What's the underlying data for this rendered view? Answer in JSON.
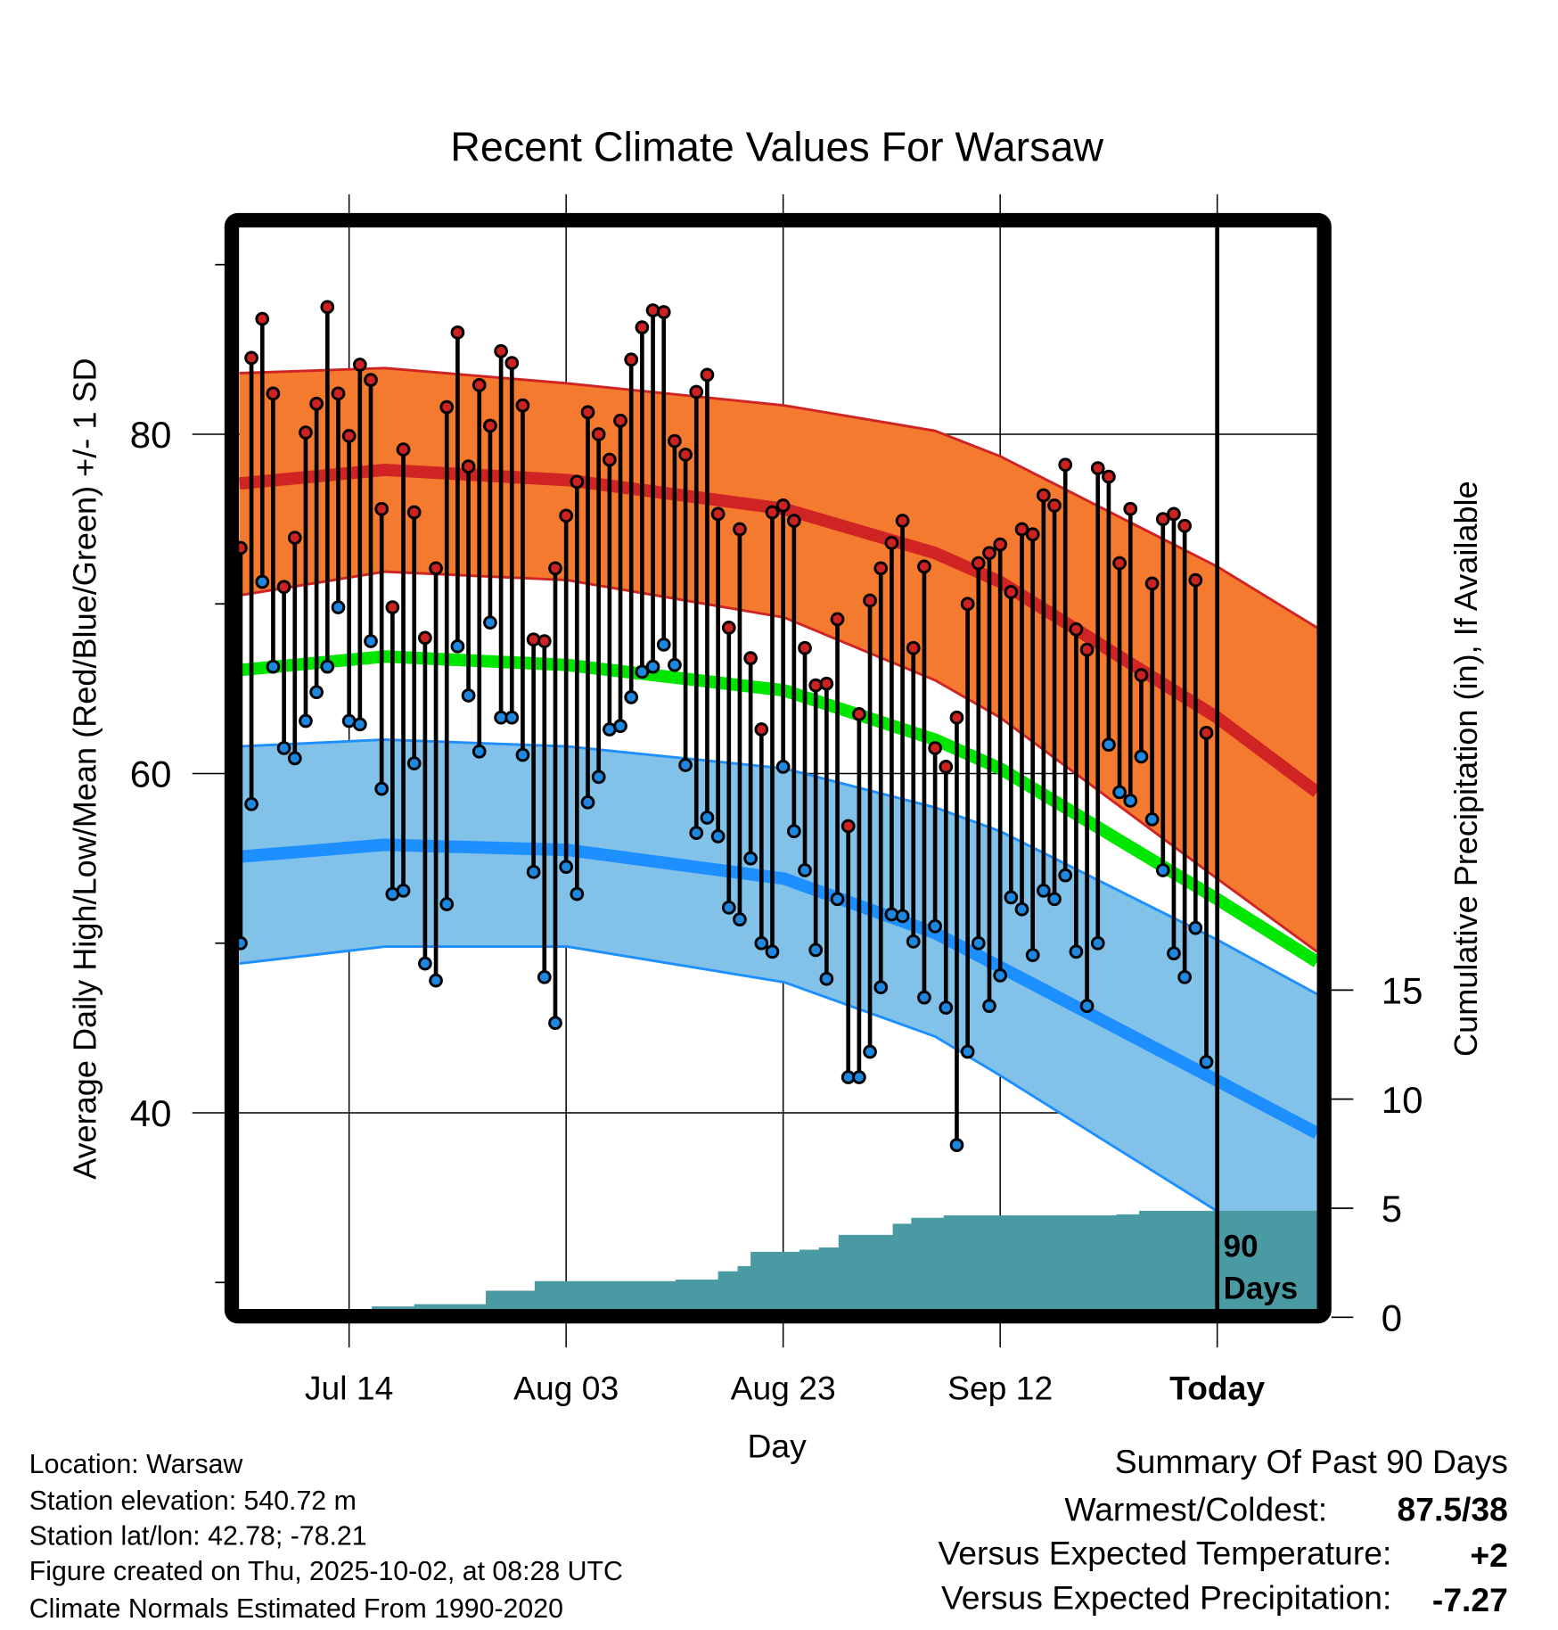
{
  "chart_data": {
    "type": "line",
    "title": "Recent Climate Values For Warsaw",
    "xlabel": "Day",
    "ylabel": "Average Daily High/Low/Mean (Red/Blue/Green) +/- 1 SD",
    "y2label": "Cumulative Precipitation (in), If Available",
    "ylim": [
      28.4,
      92.2
    ],
    "y2lim": [
      0,
      15
    ],
    "xlim_days_from_today": [
      -90.1,
      9.2
    ],
    "x_ticks": [
      {
        "day": -80,
        "label": "Jul 14"
      },
      {
        "day": -60,
        "label": "Aug 03"
      },
      {
        "day": -40,
        "label": "Aug 23"
      },
      {
        "day": -20,
        "label": "Sep 12"
      },
      {
        "day": 0,
        "label": "Today"
      }
    ],
    "y_ticks": [
      {
        "value": 80,
        "label": "80"
      },
      {
        "value": 60,
        "label": "60"
      },
      {
        "value": 40,
        "label": "40"
      }
    ],
    "y_minor_ticks": [
      90,
      70,
      50,
      30
    ],
    "y2_ticks": [
      {
        "value": 0,
        "label": "0"
      },
      {
        "value": 5,
        "label": "5"
      },
      {
        "value": 10,
        "label": "10"
      },
      {
        "value": 15,
        "label": "15"
      }
    ],
    "grid": true,
    "window_label_line1": "90",
    "window_label_line2": "Days",
    "daily": {
      "first_day_from_today": -90,
      "high": [
        73.3,
        84.5,
        86.8,
        82.4,
        71,
        73.9,
        80.1,
        81.8,
        87.5,
        82.4,
        79.9,
        84.1,
        83.2,
        75.6,
        69.8,
        79.1,
        75.4,
        68,
        72.1,
        81.6,
        86,
        78.1,
        82.9,
        80.5,
        84.9,
        84.2,
        81.7,
        67.9,
        67.8,
        72.1,
        75.2,
        77.2,
        81.3,
        80,
        78.5,
        80.8,
        84.4,
        86.3,
        87.3,
        87.2,
        79.6,
        78.8,
        82.5,
        83.5,
        75.3,
        68.6,
        74.4,
        66.8,
        62.6,
        75.4,
        75.8,
        74.9,
        67.4,
        65.2,
        65.3,
        69.1,
        56.9,
        63.5,
        70.2,
        72.1,
        73.6,
        74.9,
        67.4,
        72.2,
        61.5,
        60.4,
        63.3,
        70,
        72.4,
        73,
        73.5,
        70.7,
        74.4,
        74.1,
        76.4,
        75.8,
        78.2,
        68.5,
        67.3,
        78,
        77.5,
        72.4,
        75.6,
        65.8,
        71.2,
        75,
        75.3,
        74.6,
        71.4,
        62.4
      ],
      "low": [
        50,
        58.2,
        71.3,
        66.3,
        61.5,
        60.9,
        63.1,
        64.8,
        66.3,
        69.8,
        63.1,
        62.9,
        67.8,
        59.1,
        52.9,
        53.1,
        60.6,
        48.8,
        47.8,
        52.3,
        67.5,
        64.6,
        61.3,
        68.9,
        63.3,
        63.3,
        61.1,
        54.2,
        48,
        45.3,
        54.5,
        52.9,
        58.3,
        59.8,
        62.6,
        62.8,
        64.5,
        66,
        66.3,
        67.6,
        66.4,
        60.5,
        56.5,
        57.4,
        56.3,
        52.1,
        51.4,
        55,
        50,
        49.5,
        60.4,
        56.6,
        54.3,
        49.6,
        47.9,
        52.6,
        42.1,
        42.1,
        43.6,
        47.4,
        51.7,
        51.6,
        50.1,
        46.8,
        51,
        46.2,
        38.1,
        43.6,
        50,
        46.3,
        48.1,
        52.7,
        52,
        49.3,
        53.1,
        52.6,
        54,
        49.5,
        46.3,
        50,
        61.7,
        58.9,
        58.4,
        61,
        57.3,
        54.3,
        49.4,
        48,
        50.9,
        43
      ]
    },
    "normals": {
      "days": [
        -90.1,
        -76.7,
        -59.9,
        -39.9,
        -26,
        -20,
        0,
        9.2
      ],
      "high_plus_sd": [
        83.6,
        83.9,
        83,
        81.7,
        80.2,
        78.7,
        72.2,
        68.6
      ],
      "high_mean": [
        77.1,
        77.9,
        77.3,
        75.6,
        73,
        71.3,
        63.3,
        58.9
      ],
      "high_minus_sd": [
        70.5,
        71.9,
        71.4,
        69.2,
        65.5,
        63.3,
        53.8,
        49.5
      ],
      "mean": [
        66.1,
        66.9,
        66.4,
        64.9,
        62,
        60.3,
        52.6,
        48.9
      ],
      "low_plus_sd": [
        61.6,
        62,
        61.6,
        60.3,
        58,
        56.6,
        50.2,
        47
      ],
      "low_mean": [
        55.1,
        55.8,
        55.5,
        53.8,
        50.6,
        48.6,
        41.9,
        38.8
      ],
      "low_minus_sd": [
        48.8,
        49.8,
        49.8,
        47.7,
        44.5,
        42.2,
        34.2,
        30
      ]
    },
    "precip_cumulative_steps": [
      [
        -90.1,
        0
      ],
      [
        -77.9,
        0.5
      ],
      [
        -74,
        0.6
      ],
      [
        -67.4,
        1.22
      ],
      [
        -62.9,
        1.66
      ],
      [
        -49.9,
        1.73
      ],
      [
        -46,
        2.11
      ],
      [
        -44.2,
        2.35
      ],
      [
        -43,
        3.0
      ],
      [
        -38.5,
        3.1
      ],
      [
        -36.7,
        3.2
      ],
      [
        -34.9,
        3.78
      ],
      [
        -29.9,
        4.29
      ],
      [
        -28.2,
        4.56
      ],
      [
        -25.2,
        4.67
      ],
      [
        -9.3,
        4.72
      ],
      [
        -7.2,
        4.88
      ],
      [
        9.2,
        4.88
      ]
    ],
    "colors": {
      "high_band": "#f47a30",
      "high_line": "#d02424",
      "mean_line": "#00e600",
      "low_band": "#82c1e8",
      "low_line": "#1e8fff",
      "precip": "#4a9aa3",
      "high_dot": "#cc2222",
      "low_dot": "#1e88e0"
    }
  },
  "footer": {
    "location": "Location: Warsaw",
    "elevation": "Station elevation: 540.72 m",
    "latlon": "Station lat/lon: 42.78; -78.21",
    "created": "Figure created on Thu, 2025-10-02, at 08:28 UTC",
    "normals": "Climate Normals Estimated From 1990-2020"
  },
  "summary": {
    "title": "Summary Of Past 90 Days",
    "warmest_coldest_label": "Warmest/Coldest:",
    "warmest_coldest_value": "87.5/38",
    "temp_label": "Versus Expected Temperature:",
    "temp_value": "+2",
    "temp_color": "#cc2222",
    "precip_label": "Versus Expected Precipitation:",
    "precip_value": "-7.27",
    "precip_color": "#a0522d"
  }
}
